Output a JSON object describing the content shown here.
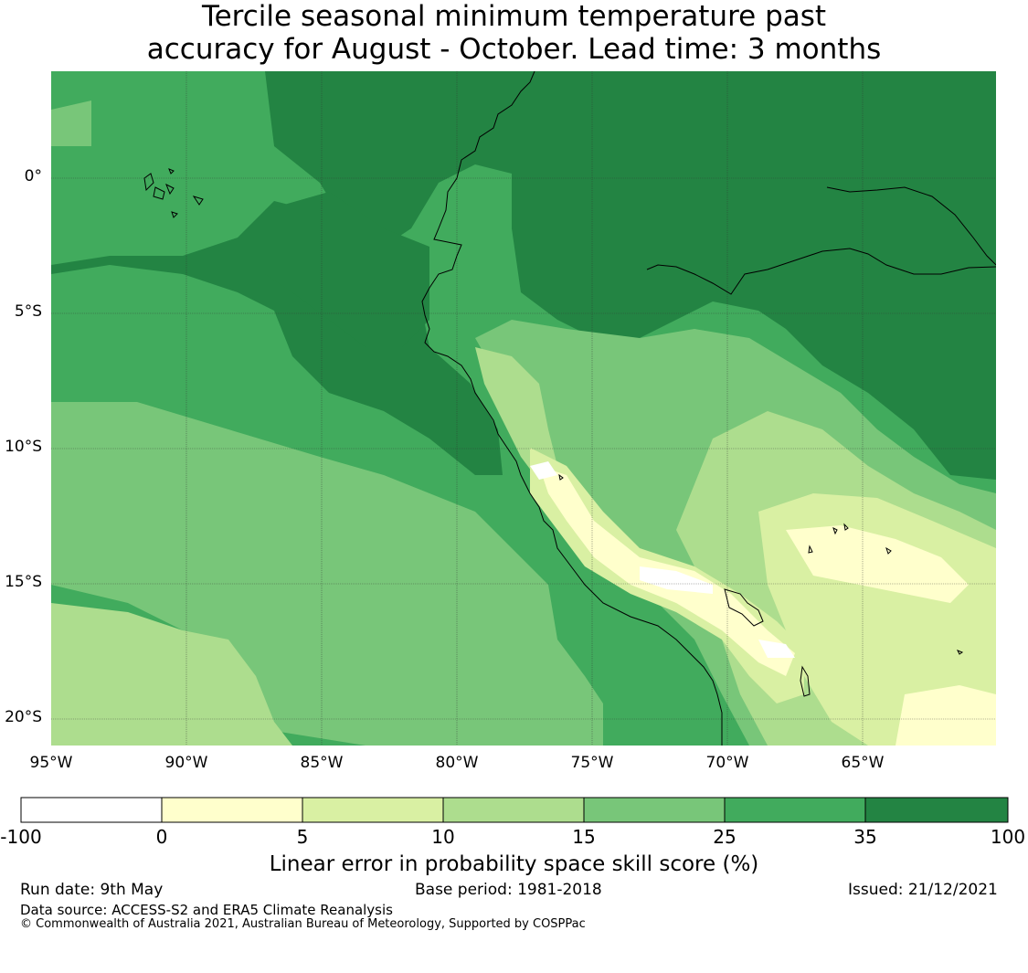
{
  "title_line1": "Tercile seasonal minimum temperature past",
  "title_line2": "accuracy for August - October. Lead time: 3 months",
  "lat_labels": [
    "0°",
    "5°S",
    "10°S",
    "15°S",
    "20°S"
  ],
  "lon_labels": [
    "95°W",
    "90°W",
    "85°W",
    "80°W",
    "75°W",
    "70°W",
    "65°W"
  ],
  "colorbar": {
    "ticks": [
      "-100",
      "0",
      "5",
      "10",
      "15",
      "25",
      "35",
      "100"
    ],
    "colors": [
      "#ffffff",
      "#ffffcc",
      "#d9f0a3",
      "#addd8e",
      "#78c679",
      "#41ab5d",
      "#238443"
    ],
    "label": "Linear error in probability space skill score (%)"
  },
  "footer": {
    "run_date": "Run date: 9th May",
    "base_period": "Base period: 1981-2018",
    "issued": "Issued: 21/12/2021",
    "data_source": "Data source: ACCESS-S2 and ERA5 Climate Reanalysis",
    "copyright": "© Commonwealth of Australia 2021, Australian Bureau of Meteorology, Supported by COSPPac"
  }
}
